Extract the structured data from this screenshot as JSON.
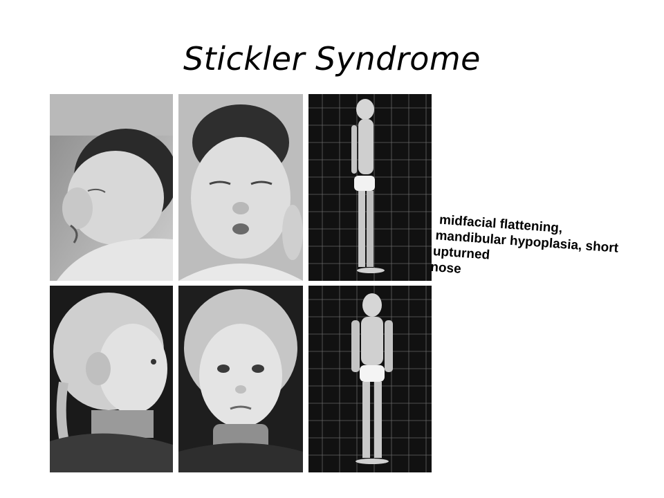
{
  "slide": {
    "title": "Stickler Syndrome",
    "caption_lines": [
      "midfacial flattening,",
      "mandibular hypoplasia, short",
      "upturned",
      "nose"
    ]
  },
  "photos": [
    {
      "id": "infant-profile",
      "subject": "infant side profile photograph"
    },
    {
      "id": "infant-front",
      "subject": "infant frontal face photograph"
    },
    {
      "id": "child-standing-side",
      "subject": "child standing side view against measurement grid"
    },
    {
      "id": "girl-profile",
      "subject": "young girl side profile photograph"
    },
    {
      "id": "girl-front",
      "subject": "young girl frontal face photograph"
    },
    {
      "id": "child-standing-front",
      "subject": "child standing front view against measurement grid"
    }
  ],
  "colors": {
    "text": "#000000",
    "background": "#ffffff"
  }
}
